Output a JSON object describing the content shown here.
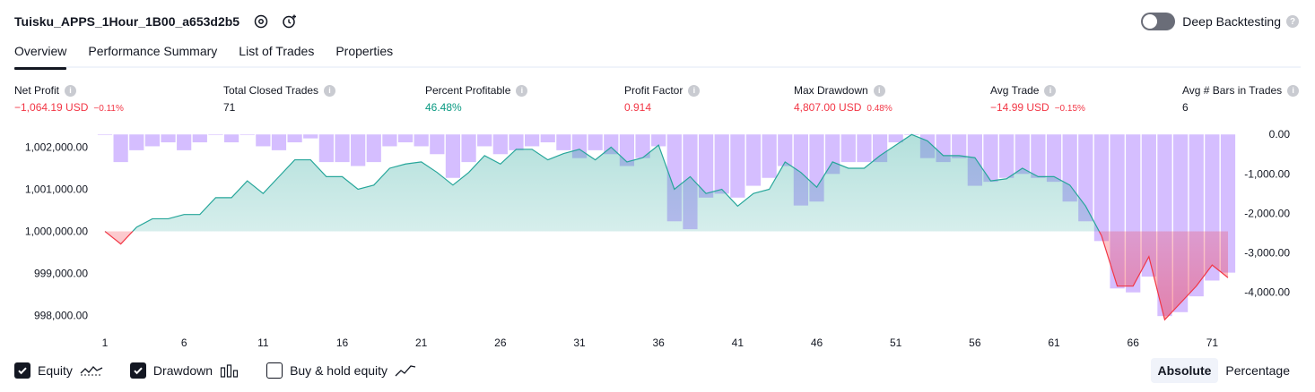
{
  "header": {
    "strategy_name": "Tuisku_APPS_1Hour_1B00_a653d2b5",
    "icons": [
      "settings-icon",
      "add-alert-icon"
    ]
  },
  "deep_backtesting": {
    "label": "Deep Backtesting",
    "enabled": false,
    "help": "?"
  },
  "tabs": [
    {
      "label": "Overview",
      "active": true
    },
    {
      "label": "Performance Summary",
      "active": false
    },
    {
      "label": "List of Trades",
      "active": false
    },
    {
      "label": "Properties",
      "active": false
    }
  ],
  "metrics": [
    {
      "label": "Net Profit",
      "value": "−1,064.19 USD",
      "sub": "−0.11%",
      "tone": "neg"
    },
    {
      "label": "Total Closed Trades",
      "value": "71",
      "sub": "",
      "tone": "neutral"
    },
    {
      "label": "Percent Profitable",
      "value": "46.48%",
      "sub": "",
      "tone": "pos"
    },
    {
      "label": "Profit Factor",
      "value": "0.914",
      "sub": "",
      "tone": "neg"
    },
    {
      "label": "Max Drawdown",
      "value": "4,807.00 USD",
      "sub": "0.48%",
      "tone": "neg"
    },
    {
      "label": "Avg Trade",
      "value": "−14.99 USD",
      "sub": "−0.15%",
      "tone": "neg"
    },
    {
      "label": "Avg # Bars in Trades",
      "value": "6",
      "sub": "",
      "tone": "neutral"
    }
  ],
  "chart_data": {
    "type": "line",
    "x": [
      1,
      2,
      3,
      4,
      5,
      6,
      7,
      8,
      9,
      10,
      11,
      12,
      13,
      14,
      15,
      16,
      17,
      18,
      19,
      20,
      21,
      22,
      23,
      24,
      25,
      26,
      27,
      28,
      29,
      30,
      31,
      32,
      33,
      34,
      35,
      36,
      37,
      38,
      39,
      40,
      41,
      42,
      43,
      44,
      45,
      46,
      47,
      48,
      49,
      50,
      51,
      52,
      53,
      54,
      55,
      56,
      57,
      58,
      59,
      60,
      61,
      62,
      63,
      64,
      65,
      66,
      67,
      68,
      69,
      70,
      71,
      72
    ],
    "x_ticks": [
      1,
      6,
      11,
      16,
      21,
      26,
      31,
      36,
      41,
      46,
      51,
      56,
      61,
      66,
      71
    ],
    "ylim_left": [
      997800,
      1002350
    ],
    "y_ticks_left": [
      998000,
      999000,
      1000000,
      1001000,
      1002000
    ],
    "y_tick_labels_left": [
      "998,000.00",
      "999,000.00",
      "1,000,000.00",
      "1,001,000.00",
      "1,002,000.00"
    ],
    "ylim_right": [
      -4800,
      50
    ],
    "y_ticks_right": [
      0,
      -1000,
      -2000,
      -3000,
      -4000
    ],
    "y_tick_labels_right": [
      "0.00",
      "-1,000.00",
      "-2,000.00",
      "-3,000.00",
      "-4,000.00"
    ],
    "baseline": 1000000,
    "series": [
      {
        "kind": "line",
        "axis": "left",
        "values": [
          1000000,
          999700,
          1000100,
          1000300,
          1000300,
          1000400,
          1000400,
          1000800,
          1000800,
          1001200,
          1000900,
          1001300,
          1001700,
          1001700,
          1001300,
          1001300,
          1001000,
          1001100,
          1001500,
          1001600,
          1001650,
          1001400,
          1001100,
          1001400,
          1001800,
          1001600,
          1001950,
          1001950,
          1001700,
          1001850,
          1001950,
          1001700,
          1002000,
          1001650,
          1001750,
          1002050,
          1001000,
          1001300,
          1000900,
          1001000,
          1000600,
          1000900,
          1001000,
          1001650,
          1001400,
          1001050,
          1001650,
          1001500,
          1001500,
          1001800,
          1002050,
          1002300,
          1002150,
          1001800,
          1001800,
          1001750,
          1001200,
          1001250,
          1001500,
          1001300,
          1001300,
          1001100,
          1000600,
          999900,
          998700,
          998700,
          999400,
          997900,
          998300,
          998700,
          999200,
          998900
        ],
        "color": "#26a69a"
      },
      {
        "kind": "bar",
        "axis": "right",
        "values": [
          0,
          -700,
          -400,
          -300,
          -200,
          -400,
          -200,
          0,
          -200,
          0,
          -300,
          -400,
          -200,
          -100,
          -700,
          -700,
          -800,
          -700,
          -300,
          -200,
          -300,
          -500,
          -1100,
          -700,
          -300,
          -500,
          -400,
          -300,
          -200,
          -400,
          -600,
          -400,
          -500,
          -800,
          -600,
          -300,
          -2200,
          -2400,
          -1600,
          -1500,
          -1600,
          -1300,
          -1100,
          -800,
          -1800,
          -1700,
          -1000,
          -700,
          -700,
          -700,
          -200,
          0,
          -600,
          -700,
          -600,
          -1300,
          -1200,
          -1100,
          -1000,
          -1100,
          -1200,
          -1700,
          -2200,
          -2700,
          -3900,
          -4000,
          -3600,
          -4600,
          -4500,
          -4100,
          -3700,
          -3500
        ],
        "color": "#b388ff"
      }
    ]
  },
  "legend": [
    {
      "label": "Equity",
      "checked": true,
      "icon": "equity-line-icon"
    },
    {
      "label": "Drawdown",
      "checked": true,
      "icon": "drawdown-bars-icon"
    },
    {
      "label": "Buy & hold equity",
      "checked": false,
      "icon": "buy-hold-line-icon"
    }
  ],
  "scale_switch": [
    {
      "label": "Absolute",
      "active": true
    },
    {
      "label": "Percentage",
      "active": false
    }
  ]
}
